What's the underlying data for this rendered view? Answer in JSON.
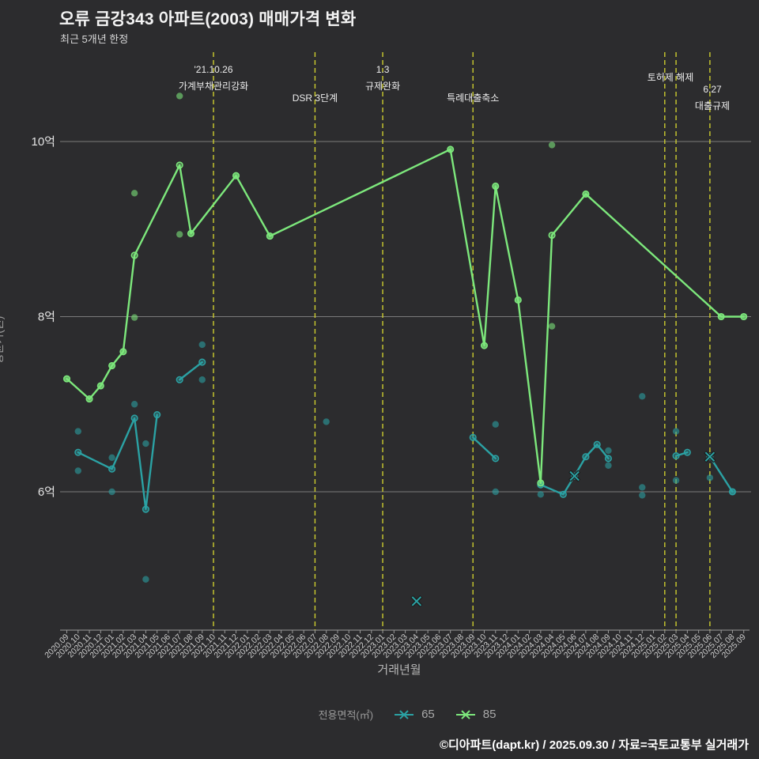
{
  "footer": {
    "credit": "©디아파트(dapt.kr) / 2025.09.30 / 자료=국토교통부 실거래가"
  },
  "chart_data": {
    "type": "line+scatter",
    "title": "오류 금강343 아파트(2003) 매매가격 변화",
    "subtitle": "최근 5개년 한정",
    "xlabel": "거래년월",
    "ylabel": "평균가(원)",
    "legend_title": "전용면적(㎡)",
    "unit": "억원",
    "grid": true,
    "legend_position": "bottom",
    "ylim": [
      4.4,
      11.0
    ],
    "y_ticks": [
      {
        "label": "6억",
        "value": 6
      },
      {
        "label": "8억",
        "value": 8
      },
      {
        "label": "10억",
        "value": 10
      }
    ],
    "x_categories": [
      "2020.09",
      "2020.10",
      "2020.11",
      "2020.12",
      "2021.01",
      "2021.02",
      "2021.03",
      "2021.04",
      "2021.05",
      "2021.06",
      "2021.07",
      "2021.08",
      "2021.09",
      "2021.10",
      "2021.11",
      "2021.12",
      "2022.01",
      "2022.02",
      "2022.03",
      "2022.04",
      "2022.05",
      "2022.06",
      "2022.07",
      "2022.08",
      "2022.09",
      "2022.10",
      "2022.11",
      "2022.12",
      "2023.01",
      "2023.02",
      "2023.03",
      "2023.04",
      "2023.05",
      "2023.06",
      "2023.07",
      "2023.08",
      "2023.09",
      "2023.10",
      "2023.11",
      "2023.12",
      "2024.01",
      "2024.02",
      "2024.03",
      "2024.04",
      "2024.05",
      "2024.06",
      "2024.07",
      "2024.08",
      "2024.09",
      "2024.10",
      "2024.11",
      "2024.12",
      "2025.01",
      "2025.02",
      "2025.03",
      "2025.04",
      "2025.05",
      "2025.06",
      "2025.07",
      "2025.08",
      "2025.09"
    ],
    "events": [
      {
        "month": "2021.10",
        "labels": [
          "'21.10.26",
          "가계부채관리강화"
        ],
        "label_ys": [
          92,
          113
        ]
      },
      {
        "month": "2022.07",
        "labels": [
          "DSR 3단계"
        ],
        "label_ys": [
          128
        ]
      },
      {
        "month": "2023.01",
        "labels": [
          "1.3",
          "규제완화"
        ],
        "label_ys": [
          92,
          113
        ]
      },
      {
        "month": "2023.09",
        "labels": [
          "특례대출축소"
        ],
        "label_ys": [
          128
        ]
      },
      {
        "month": "2025.02",
        "labels": [
          "토허제 해제"
        ],
        "label_ys": [
          102
        ],
        "label_x": 848
      },
      {
        "month": "2025.03",
        "labels": [],
        "label_ys": []
      },
      {
        "month": "2025.06",
        "labels": [
          "6.27",
          "대출규제"
        ],
        "label_ys": [
          117,
          138
        ],
        "label_x": 901
      }
    ],
    "series": [
      {
        "name": "65",
        "color": "#2ba2a4",
        "segments": [
          [
            [
              "2020.10",
              6.45
            ],
            [
              "2021.01",
              6.26
            ],
            [
              "2021.03",
              6.84
            ],
            [
              "2021.04",
              5.8
            ],
            [
              "2021.05",
              6.88
            ]
          ],
          [
            [
              "2021.07",
              7.28
            ],
            [
              "2021.09",
              7.48
            ]
          ],
          [
            [
              "2023.09",
              6.62
            ],
            [
              "2023.11",
              6.38
            ]
          ],
          [
            [
              "2024.03",
              6.08
            ],
            [
              "2024.05",
              5.97
            ],
            [
              "2024.06",
              6.18
            ],
            [
              "2024.07",
              6.4
            ],
            [
              "2024.08",
              6.54
            ],
            [
              "2024.09",
              6.38
            ]
          ],
          [
            [
              "2025.03",
              6.41
            ],
            [
              "2025.04",
              6.45
            ]
          ],
          [
            [
              "2025.06",
              6.4
            ],
            [
              "2025.08",
              6.0
            ]
          ]
        ],
        "scatter": [
          [
            "2020.10",
            6.69
          ],
          [
            "2020.10",
            6.24
          ],
          [
            "2021.01",
            6.39
          ],
          [
            "2021.01",
            6.0
          ],
          [
            "2021.03",
            7.0
          ],
          [
            "2021.04",
            6.55
          ],
          [
            "2021.04",
            5.0
          ],
          [
            "2021.09",
            7.68
          ],
          [
            "2021.09",
            7.28
          ],
          [
            "2022.08",
            6.8
          ],
          [
            "2023.11",
            6.77
          ],
          [
            "2023.11",
            6.0
          ],
          [
            "2024.03",
            5.97
          ],
          [
            "2024.09",
            6.47
          ],
          [
            "2024.09",
            6.3
          ],
          [
            "2024.12",
            7.09
          ],
          [
            "2024.12",
            6.05
          ],
          [
            "2024.12",
            5.96
          ],
          [
            "2025.03",
            6.69
          ],
          [
            "2025.03",
            6.13
          ],
          [
            "2025.06",
            6.16
          ],
          [
            "2025.08",
            6.0
          ]
        ],
        "x_markers": [
          [
            "2023.04",
            4.75
          ],
          [
            "2024.06",
            6.18
          ],
          [
            "2025.06",
            6.4
          ]
        ]
      },
      {
        "name": "85",
        "color": "#7de87c",
        "segments": [
          [
            [
              "2020.09",
              7.29
            ],
            [
              "2020.11",
              7.06
            ],
            [
              "2020.12",
              7.21
            ],
            [
              "2021.01",
              7.44
            ],
            [
              "2021.02",
              7.6
            ],
            [
              "2021.03",
              8.7
            ],
            [
              "2021.07",
              9.73
            ],
            [
              "2021.08",
              8.95
            ],
            [
              "2021.12",
              9.61
            ],
            [
              "2022.03",
              8.92
            ],
            [
              "2023.07",
              9.91
            ],
            [
              "2023.10",
              7.67
            ],
            [
              "2023.11",
              9.49
            ],
            [
              "2024.01",
              8.19
            ],
            [
              "2024.03",
              6.1
            ],
            [
              "2024.04",
              8.93
            ],
            [
              "2024.07",
              9.4
            ],
            [
              "2025.07",
              8.0
            ],
            [
              "2025.09",
              8.0
            ]
          ]
        ],
        "scatter": [
          [
            "2020.09",
            7.29
          ],
          [
            "2020.11",
            7.06
          ],
          [
            "2020.12",
            7.21
          ],
          [
            "2021.01",
            7.44
          ],
          [
            "2021.02",
            7.6
          ],
          [
            "2021.03",
            9.41
          ],
          [
            "2021.03",
            7.99
          ],
          [
            "2021.07",
            10.52
          ],
          [
            "2021.07",
            8.94
          ],
          [
            "2021.08",
            8.95
          ],
          [
            "2021.12",
            9.61
          ],
          [
            "2022.03",
            8.92
          ],
          [
            "2023.07",
            9.91
          ],
          [
            "2023.10",
            7.67
          ],
          [
            "2023.11",
            9.49
          ],
          [
            "2024.01",
            8.19
          ],
          [
            "2024.03",
            6.1
          ],
          [
            "2024.04",
            9.96
          ],
          [
            "2024.04",
            7.89
          ],
          [
            "2024.07",
            9.4
          ],
          [
            "2025.07",
            8.0
          ],
          [
            "2025.09",
            8.0
          ]
        ],
        "x_markers": []
      }
    ]
  }
}
